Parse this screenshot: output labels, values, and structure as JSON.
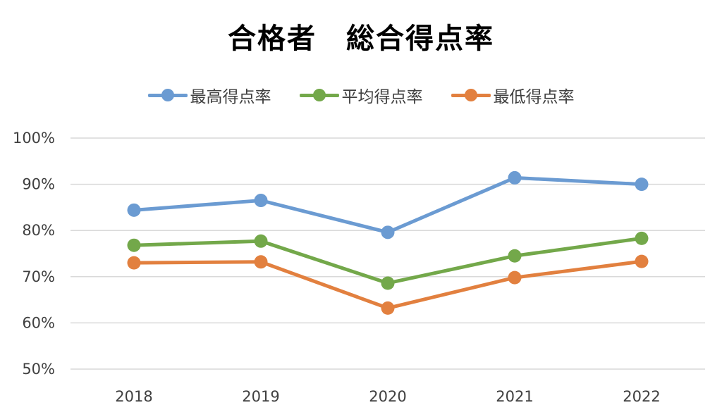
{
  "chart_data": {
    "type": "line",
    "title": "合格者　総合得点率",
    "xlabel": "",
    "ylabel": "",
    "categories": [
      "2018",
      "2019",
      "2020",
      "2021",
      "2022"
    ],
    "ylim": [
      0.5,
      1.0
    ],
    "yticks": [
      "50%",
      "60%",
      "70%",
      "80%",
      "90%",
      "100%"
    ],
    "ytick_values": [
      0.5,
      0.6,
      0.7,
      0.8,
      0.9,
      1.0
    ],
    "grid": true,
    "legend_position": "top",
    "series": [
      {
        "name": "最高得点率",
        "color": "#6b9bd2",
        "values": [
          0.844,
          0.865,
          0.796,
          0.914,
          0.9
        ]
      },
      {
        "name": "平均得点率",
        "color": "#73a84a",
        "values": [
          0.768,
          0.777,
          0.686,
          0.745,
          0.783
        ]
      },
      {
        "name": "最低得点率",
        "color": "#e2803f",
        "values": [
          0.73,
          0.732,
          0.632,
          0.698,
          0.733
        ]
      }
    ]
  }
}
